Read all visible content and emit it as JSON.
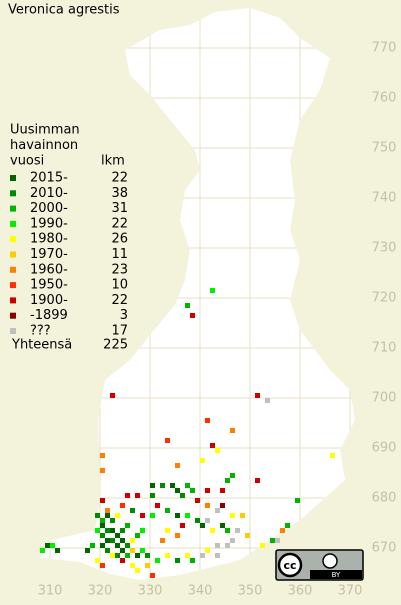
{
  "map_title": "Veronica agrestis",
  "legend": {
    "heading": [
      "Uusimman",
      "havainnon",
      "vuosi"
    ],
    "count_header": "lkm",
    "entries": [
      {
        "label": "2015-",
        "count": 22,
        "color": "#006400"
      },
      {
        "label": "2010-",
        "count": 38,
        "color": "#008c00"
      },
      {
        "label": "2000-",
        "count": 31,
        "color": "#00b400"
      },
      {
        "label": "1990-",
        "count": 22,
        "color": "#00ee00"
      },
      {
        "label": "1980-",
        "count": 26,
        "color": "#ffff00"
      },
      {
        "label": "1970-",
        "count": 11,
        "color": "#ffcc00"
      },
      {
        "label": "1960-",
        "count": 23,
        "color": "#ff7f00"
      },
      {
        "label": "1950-",
        "count": 10,
        "color": "#ff3000"
      },
      {
        "label": "1900-",
        "count": 22,
        "color": "#cc0000"
      },
      {
        "label": "-1899",
        "count": 3,
        "color": "#880000"
      },
      {
        "label": "???",
        "count": 17,
        "color": "#c0c0c0"
      }
    ],
    "total_label": "Yhteensä",
    "total": 225
  },
  "xticks": [
    310,
    320,
    330,
    340,
    350,
    360,
    370
  ],
  "yticks": [
    770,
    760,
    750,
    740,
    730,
    720,
    710,
    700,
    690,
    680,
    670
  ],
  "license_badge": {
    "cc": "cc",
    "by": "BY"
  },
  "squares": [
    [
      342,
      721,
      3
    ],
    [
      337,
      718,
      2
    ],
    [
      338,
      716,
      8
    ],
    [
      322,
      700,
      8
    ],
    [
      351,
      700,
      8
    ],
    [
      353,
      699,
      10
    ],
    [
      341,
      695,
      7
    ],
    [
      346,
      693,
      6
    ],
    [
      333,
      691,
      7
    ],
    [
      320,
      688,
      6
    ],
    [
      340,
      687,
      4
    ],
    [
      343,
      689,
      4
    ],
    [
      342,
      690,
      8
    ],
    [
      335,
      686,
      6
    ],
    [
      366,
      688,
      4
    ],
    [
      320,
      685,
      6
    ],
    [
      345,
      683,
      2
    ],
    [
      346,
      684,
      2
    ],
    [
      351,
      683,
      8
    ],
    [
      341,
      681,
      8
    ],
    [
      344,
      681,
      8
    ],
    [
      325,
      680,
      8
    ],
    [
      327,
      680,
      8
    ],
    [
      320,
      679,
      8
    ],
    [
      359,
      679,
      2
    ],
    [
      321,
      677,
      6
    ],
    [
      319,
      676,
      1
    ],
    [
      320,
      675,
      2
    ],
    [
      321,
      676,
      0
    ],
    [
      322,
      675,
      1
    ],
    [
      320,
      674,
      0
    ],
    [
      321,
      673,
      1
    ],
    [
      322,
      673,
      0
    ],
    [
      323,
      672,
      0
    ],
    [
      324,
      673,
      1
    ],
    [
      325,
      674,
      2
    ],
    [
      319,
      673,
      3
    ],
    [
      320,
      672,
      1
    ],
    [
      321,
      671,
      0
    ],
    [
      322,
      671,
      1
    ],
    [
      323,
      670,
      0
    ],
    [
      324,
      671,
      0
    ],
    [
      325,
      670,
      1
    ],
    [
      326,
      671,
      4
    ],
    [
      327,
      672,
      2
    ],
    [
      328,
      673,
      3
    ],
    [
      320,
      670,
      0
    ],
    [
      321,
      669,
      1
    ],
    [
      322,
      668,
      4
    ],
    [
      323,
      668,
      1
    ],
    [
      324,
      669,
      0
    ],
    [
      325,
      668,
      2
    ],
    [
      326,
      669,
      5
    ],
    [
      327,
      668,
      0
    ],
    [
      328,
      669,
      3
    ],
    [
      329,
      668,
      1
    ],
    [
      318,
      670,
      2
    ],
    [
      317,
      669,
      0
    ],
    [
      310,
      670,
      3
    ],
    [
      309,
      670,
      0
    ],
    [
      308,
      669,
      3
    ],
    [
      311,
      669,
      0
    ],
    [
      319,
      667,
      4
    ],
    [
      320,
      666,
      7
    ],
    [
      324,
      667,
      8
    ],
    [
      326,
      666,
      4
    ],
    [
      329,
      666,
      5
    ],
    [
      331,
      667,
      3
    ],
    [
      333,
      668,
      4
    ],
    [
      335,
      667,
      1
    ],
    [
      337,
      668,
      4
    ],
    [
      338,
      667,
      2
    ],
    [
      340,
      668,
      10
    ],
    [
      341,
      669,
      4
    ],
    [
      343,
      668,
      10
    ],
    [
      332,
      671,
      6
    ],
    [
      333,
      673,
      4
    ],
    [
      335,
      672,
      6
    ],
    [
      336,
      674,
      8
    ],
    [
      337,
      676,
      3
    ],
    [
      339,
      675,
      1
    ],
    [
      340,
      674,
      0
    ],
    [
      341,
      675,
      10
    ],
    [
      342,
      673,
      4
    ],
    [
      344,
      674,
      0
    ],
    [
      345,
      673,
      2
    ],
    [
      347,
      673,
      10
    ],
    [
      349,
      672,
      5
    ],
    [
      352,
      670,
      4
    ],
    [
      354,
      671,
      2
    ],
    [
      355,
      671,
      10
    ],
    [
      356,
      673,
      6
    ],
    [
      357,
      674,
      2
    ],
    [
      343,
      670,
      10
    ],
    [
      345,
      670,
      10
    ],
    [
      346,
      671,
      10
    ],
    [
      330,
      676,
      3
    ],
    [
      331,
      678,
      8
    ],
    [
      333,
      677,
      2
    ],
    [
      335,
      676,
      0
    ],
    [
      328,
      676,
      8
    ],
    [
      326,
      677,
      1
    ],
    [
      324,
      678,
      7
    ],
    [
      323,
      676,
      4
    ],
    [
      334,
      682,
      0
    ],
    [
      335,
      681,
      0
    ],
    [
      336,
      680,
      1
    ],
    [
      337,
      682,
      2
    ],
    [
      338,
      681,
      2
    ],
    [
      332,
      682,
      1
    ],
    [
      330,
      682,
      0
    ],
    [
      330,
      680,
      1
    ],
    [
      339,
      679,
      8
    ],
    [
      341,
      678,
      6
    ],
    [
      343,
      677,
      10
    ],
    [
      344,
      678,
      9
    ],
    [
      346,
      676,
      4
    ],
    [
      348,
      676,
      5
    ],
    [
      327,
      665,
      4
    ],
    [
      330,
      664,
      7
    ]
  ]
}
